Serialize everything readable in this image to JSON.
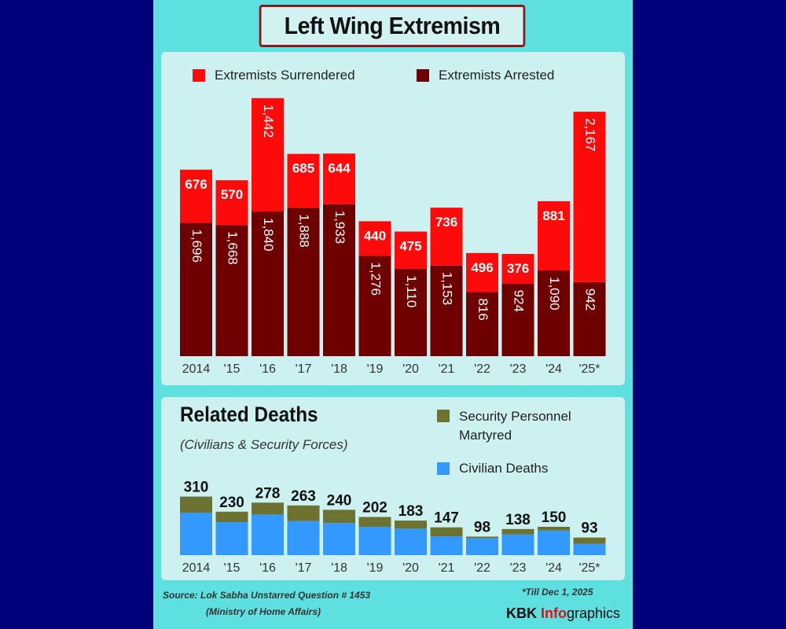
{
  "title": "Left Wing Extremism",
  "colors": {
    "surrendered": "#ff0a0a",
    "arrested": "#6e0000",
    "security": "#6d7230",
    "civilian": "#3399ff",
    "background": "#00007a",
    "frame": "#5fe0e0",
    "panel": "#cdf0f0"
  },
  "chart_data": [
    {
      "type": "bar",
      "stacked": true,
      "categories": [
        "2014",
        "'15",
        "'16",
        "'17",
        "'18",
        "'19",
        "'20",
        "'21",
        "'22",
        "'23",
        "'24",
        "'25*"
      ],
      "series": [
        {
          "name": "Extremists Arrested",
          "values": [
            1696,
            1668,
            1840,
            1888,
            1933,
            1276,
            1110,
            1153,
            816,
            924,
            1090,
            942
          ]
        },
        {
          "name": "Extremists Surrendered",
          "values": [
            676,
            570,
            1442,
            685,
            644,
            440,
            475,
            736,
            496,
            376,
            881,
            2167
          ]
        }
      ],
      "labels": {
        "arrested": [
          "1,696",
          "1,668",
          "1,840",
          "1,888",
          "1,933",
          "1,276",
          "1,110",
          "1,153",
          "816",
          "924",
          "1,090",
          "942"
        ],
        "surrendered": [
          "676",
          "570",
          "1,442",
          "685",
          "644",
          "440",
          "475",
          "736",
          "496",
          "376",
          "881",
          "2,167"
        ]
      },
      "legend_placement": "top",
      "grid": false
    },
    {
      "type": "bar",
      "stacked": true,
      "title": "Related Deaths",
      "subtitle": "(Civilians & Security Forces)",
      "categories": [
        "2014",
        "'15",
        "'16",
        "'17",
        "'18",
        "'19",
        "'20",
        "'21",
        "'22",
        "'23",
        "'24",
        "'25*"
      ],
      "totals": [
        310,
        230,
        278,
        263,
        240,
        202,
        183,
        147,
        98,
        138,
        150,
        93
      ],
      "series": [
        {
          "name": "Civilian Deaths",
          "values": [
            225,
            175,
            215,
            180,
            170,
            150,
            140,
            100,
            90,
            110,
            130,
            60
          ]
        },
        {
          "name": "Security Personnel Martyred",
          "values": [
            85,
            55,
            63,
            83,
            70,
            52,
            43,
            47,
            8,
            28,
            20,
            33
          ]
        }
      ],
      "legend_placement": "top-right",
      "grid": false
    }
  ],
  "footer": {
    "source": "Source: Lok Sabha Unstarred Question # 1453",
    "ministry": "(Ministry of Home Affairs)",
    "note": "*Till Dec 1, 2025",
    "brand_a": "KBK ",
    "brand_b": "Info",
    "brand_c": "graphics"
  }
}
